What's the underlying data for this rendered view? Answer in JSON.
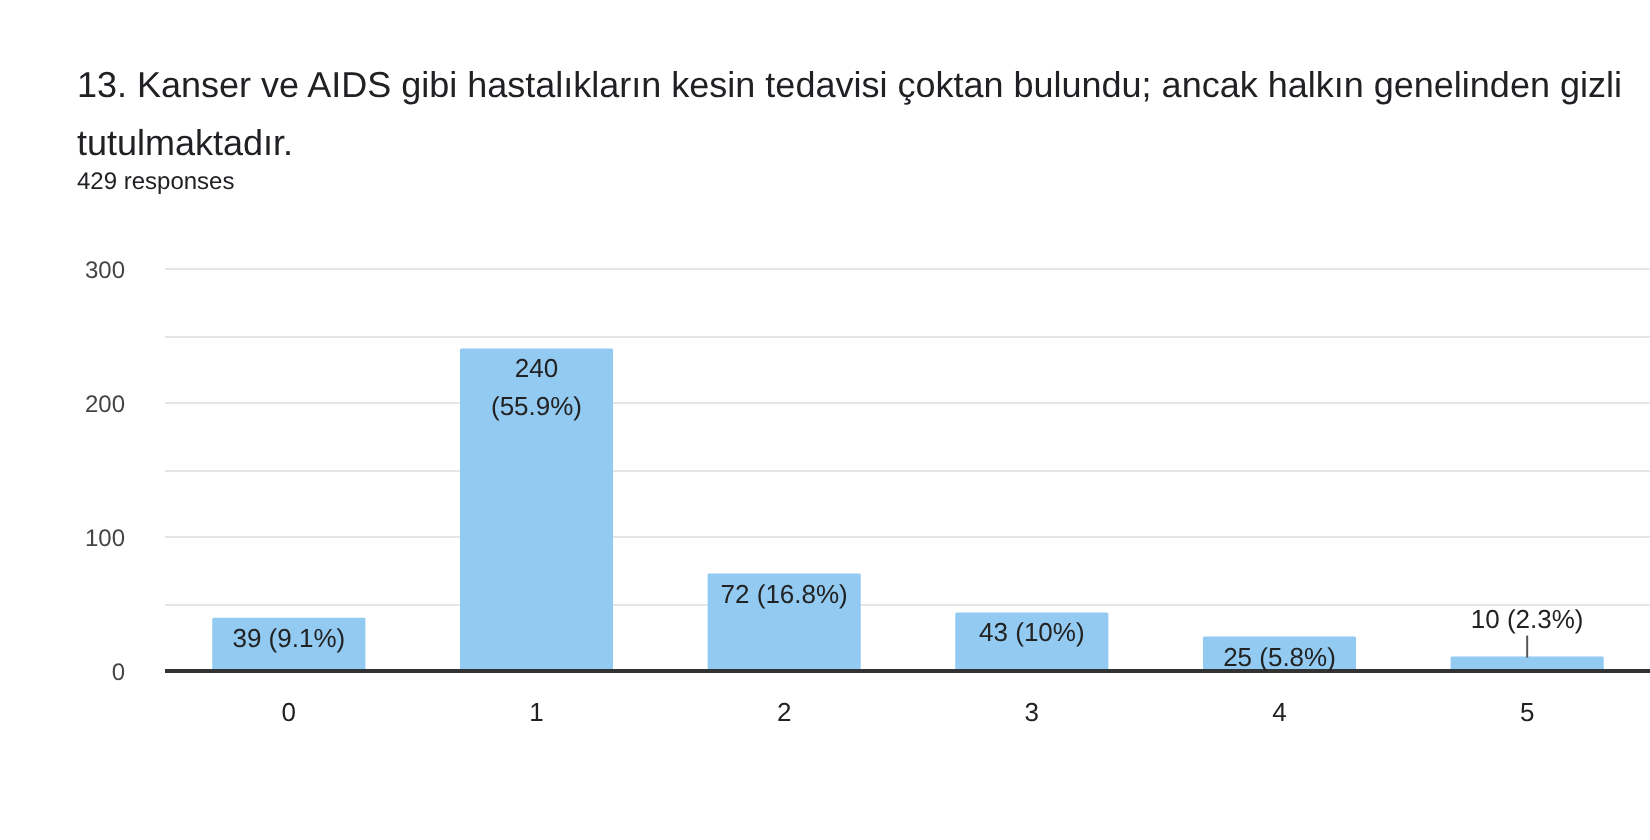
{
  "chart_data": {
    "type": "bar",
    "title": "13. Kanser ve AIDS gibi hastalıkların kesin tedavisi çoktan bulundu; ancak halkın genelinden gizli tutulmaktadır.",
    "subtitle": "429 responses",
    "categories": [
      "0",
      "1",
      "2",
      "3",
      "4",
      "5"
    ],
    "values": [
      39,
      240,
      72,
      43,
      25,
      10
    ],
    "value_labels": [
      "39 (9.1%)",
      "240 (55.9%)",
      "72 (16.8%)",
      "43 (10%)",
      "25 (5.8%)",
      "10 (2.3%)"
    ],
    "color": "#92caf1",
    "ylim": [
      0,
      300
    ],
    "yticks": [
      0,
      {
        "value": 50,
        "label": null
      },
      100,
      {
        "value": 150,
        "label": null
      },
      200,
      {
        "value": 250,
        "label": null
      },
      300
    ],
    "grid": "y"
  }
}
